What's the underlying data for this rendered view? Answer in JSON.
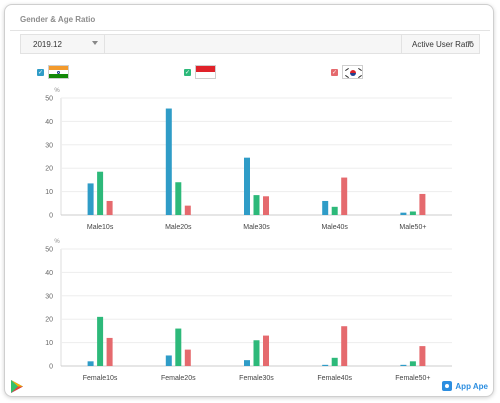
{
  "header": {
    "title": "Gender & Age Ratio"
  },
  "toolbar": {
    "date_value": "2019.12",
    "metric_value": "Active User Ratio"
  },
  "legend": [
    {
      "icon": "india-flag-icon",
      "color": "#2f9cc7"
    },
    {
      "icon": "indonesia-flag-icon",
      "color": "#2db97a"
    },
    {
      "icon": "south-korea-flag-icon",
      "color": "#e56a6e"
    }
  ],
  "colors": [
    "#2f9cc7",
    "#2db97a",
    "#e56a6e"
  ],
  "branding": {
    "appape": "App Ape"
  },
  "chart_data": [
    {
      "type": "bar",
      "ylabel": "%",
      "ylim": [
        0,
        50
      ],
      "yticks": [
        0,
        10,
        20,
        30,
        40,
        50
      ],
      "categories": [
        "Male10s",
        "Male20s",
        "Male30s",
        "Male40s",
        "Male50+"
      ],
      "series": [
        {
          "values": [
            13.5,
            45.5,
            24.5,
            6,
            1
          ]
        },
        {
          "values": [
            18.5,
            14,
            8.5,
            3.5,
            1.5
          ]
        },
        {
          "values": [
            6,
            4,
            8,
            16,
            9
          ]
        }
      ]
    },
    {
      "type": "bar",
      "ylabel": "%",
      "ylim": [
        0,
        50
      ],
      "yticks": [
        0,
        10,
        20,
        30,
        40,
        50
      ],
      "categories": [
        "Female10s",
        "Female20s",
        "Female30s",
        "Female40s",
        "Female50+"
      ],
      "series": [
        {
          "values": [
            2,
            4.5,
            2.5,
            0.5,
            0.5
          ]
        },
        {
          "values": [
            21,
            16,
            11,
            3.5,
            2
          ]
        },
        {
          "values": [
            12,
            7,
            13,
            17,
            8.5
          ]
        }
      ]
    }
  ]
}
